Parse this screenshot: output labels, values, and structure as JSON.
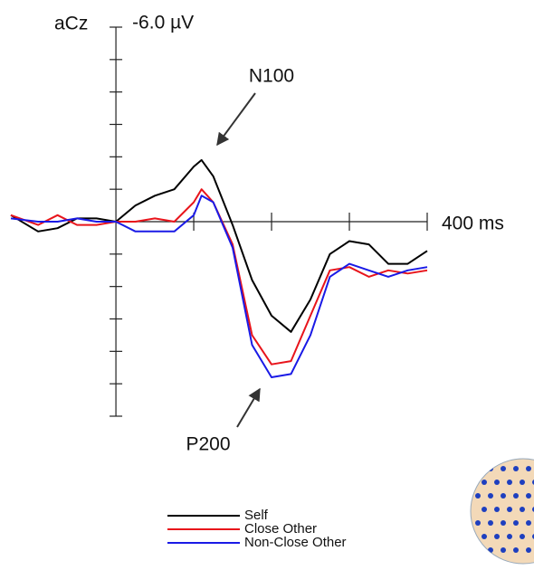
{
  "chart_data": {
    "type": "line",
    "channel": "aCz",
    "annotations": [
      "N100",
      "P200"
    ],
    "x": [
      -135,
      -100,
      -75,
      -50,
      -25,
      0,
      25,
      50,
      75,
      100,
      110,
      125,
      150,
      175,
      200,
      225,
      250,
      275,
      300,
      325,
      350,
      375,
      400
    ],
    "series": [
      {
        "name": "Self",
        "color": "#000000",
        "values": [
          -0.2,
          0.3,
          0.2,
          -0.1,
          -0.1,
          0,
          -0.5,
          -0.8,
          -1.0,
          -1.7,
          -1.9,
          -1.4,
          0.1,
          1.8,
          2.9,
          3.4,
          2.4,
          1.0,
          0.6,
          0.7,
          1.3,
          1.3,
          0.9
        ]
      },
      {
        "name": "Close Other",
        "color": "#e8141b",
        "values": [
          -0.2,
          0.1,
          -0.2,
          0.1,
          0.1,
          0,
          0,
          -0.1,
          0,
          -0.6,
          -1.0,
          -0.6,
          0.7,
          3.5,
          4.4,
          4.3,
          2.9,
          1.5,
          1.4,
          1.7,
          1.5,
          1.6,
          1.5
        ]
      },
      {
        "name": "Non-Close Other",
        "color": "#1a1ae6",
        "values": [
          -0.1,
          0,
          0,
          -0.1,
          0,
          0,
          0.3,
          0.3,
          0.3,
          -0.2,
          -0.8,
          -0.6,
          0.8,
          3.8,
          4.8,
          4.7,
          3.5,
          1.7,
          1.3,
          1.5,
          1.7,
          1.5,
          1.4
        ]
      }
    ],
    "xlim": [
      -135,
      400
    ],
    "xticks": [
      {
        "value": 400,
        "label": "400 ms"
      }
    ],
    "xminor_ticks": [
      100,
      200,
      300
    ],
    "ylim": [
      -6,
      6
    ],
    "y_inverted": true,
    "yticks": [
      {
        "value": -6,
        "label": "-6.0 µV"
      }
    ],
    "yminor_ticks": [
      -5,
      -4,
      -3,
      -2,
      -1,
      1,
      2,
      3,
      4,
      5,
      6
    ]
  }
}
